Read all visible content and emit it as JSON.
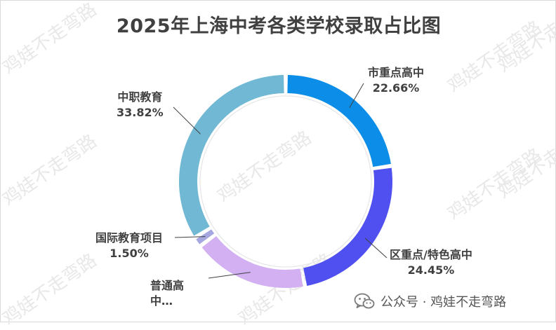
{
  "chart_data": {
    "type": "pie",
    "style": "donut",
    "title": "2025年上海中考各类学校录取占比图",
    "slices": [
      {
        "label": "市重点高中",
        "value": 22.66,
        "value_label": "22.66%",
        "color": "#0b8de8"
      },
      {
        "label": "区重点/特色高中",
        "value": 24.45,
        "value_label": "24.45%",
        "color": "#5050f0"
      },
      {
        "label": "普通高中…",
        "value": 17.57,
        "value_label": "",
        "color": "#d2b0f2"
      },
      {
        "label": "国际教育项目",
        "value": 1.5,
        "value_label": "1.50%",
        "color": "#a6a6e0"
      },
      {
        "label": "中职教育",
        "value": 33.82,
        "value_label": "33.82%",
        "color": "#70b8d4"
      }
    ]
  },
  "labels": {
    "city_key": {
      "name": "市重点高中",
      "pct": "22.66%"
    },
    "district_key": {
      "name": "区重点/特色高中",
      "pct": "24.45%"
    },
    "regular": {
      "name": "普通高",
      "name2": "中…"
    },
    "international": {
      "name": "国际教育项目",
      "pct": "1.50%"
    },
    "vocational": {
      "name": "中职教育",
      "pct": "33.82%"
    }
  },
  "watermark_text": "鸡娃不走弯路",
  "footer": {
    "text": "公众号 · 鸡娃不走弯路",
    "icon": "wechat-icon"
  }
}
